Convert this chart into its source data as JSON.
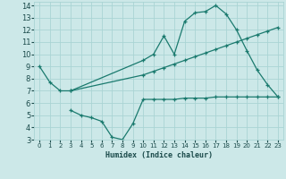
{
  "xlabel": "Humidex (Indice chaleur)",
  "bg_color": "#cce8e8",
  "grid_color": "#aad4d4",
  "line_color": "#1a7a6e",
  "xlim": [
    -0.5,
    23.5
  ],
  "ylim": [
    3,
    14.3
  ],
  "xticks": [
    0,
    1,
    2,
    3,
    4,
    5,
    6,
    7,
    8,
    9,
    10,
    11,
    12,
    13,
    14,
    15,
    16,
    17,
    18,
    19,
    20,
    21,
    22,
    23
  ],
  "yticks": [
    3,
    4,
    5,
    6,
    7,
    8,
    9,
    10,
    11,
    12,
    13,
    14
  ],
  "line1_x": [
    0,
    1,
    2,
    3,
    10,
    11,
    12,
    13,
    14,
    15,
    16,
    17,
    18,
    19,
    20,
    21,
    22,
    23
  ],
  "line1_y": [
    9.0,
    7.7,
    7.0,
    7.0,
    9.5,
    10.0,
    11.5,
    10.0,
    12.7,
    13.4,
    13.5,
    14.0,
    13.3,
    12.0,
    10.3,
    8.7,
    7.5,
    6.5
  ],
  "line2_x": [
    3,
    10,
    11,
    12,
    13,
    14,
    15,
    16,
    17,
    18,
    19,
    20,
    21,
    22,
    23
  ],
  "line2_y": [
    7.0,
    8.3,
    8.6,
    8.9,
    9.2,
    9.5,
    9.8,
    10.1,
    10.4,
    10.7,
    11.0,
    11.3,
    11.6,
    11.9,
    12.2
  ],
  "line3_x": [
    3,
    4,
    5,
    6,
    7,
    8,
    9,
    10,
    11,
    12,
    13,
    14,
    15,
    16,
    17,
    18,
    19,
    20,
    21,
    22,
    23
  ],
  "line3_y": [
    5.4,
    5.0,
    4.8,
    4.5,
    3.2,
    3.0,
    4.3,
    6.3,
    6.3,
    6.3,
    6.3,
    6.4,
    6.4,
    6.4,
    6.5,
    6.5,
    6.5,
    6.5,
    6.5,
    6.5,
    6.5
  ]
}
